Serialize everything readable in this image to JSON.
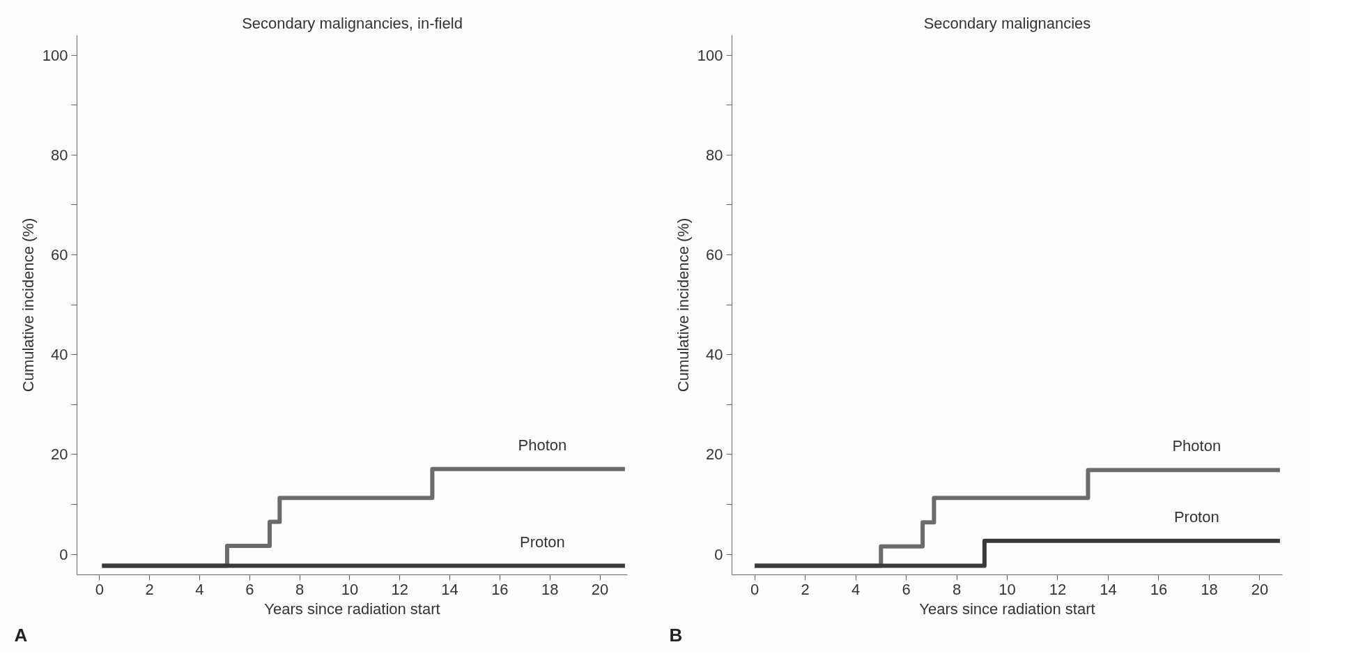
{
  "chart_data": [
    {
      "type": "step",
      "title": "Secondary malignancies, in-field",
      "xlabel": "Years since radiation start",
      "ylabel": "Cumulative incidence (%)",
      "annotations": [
        "A"
      ],
      "xlim": [
        -0.9,
        21.1
      ],
      "xticks": [
        0,
        2,
        4,
        6,
        8,
        10,
        12,
        14,
        16,
        18,
        20
      ],
      "ylim": [
        -4.1,
        104
      ],
      "yticks": [
        0,
        {
          "value": 10,
          "label": null
        },
        20,
        {
          "value": 30,
          "label": null
        },
        40,
        {
          "value": 50,
          "label": null
        },
        60,
        {
          "value": 70,
          "label": null
        },
        80,
        {
          "value": 90,
          "label": null
        },
        100
      ],
      "grid": false,
      "legend": false,
      "line_style": "solid",
      "marker": "none",
      "series": [
        {
          "name": "Photon",
          "color": "#6b6b6b",
          "x": [
            0.1,
            5.1,
            6.8,
            7.2,
            13.3,
            21.0
          ],
          "values": [
            -2.3,
            1.7,
            6.5,
            11.3,
            17.1,
            17.1
          ]
        },
        {
          "name": "Proton",
          "color": "#3a3a3a",
          "x": [
            0.1,
            21.0
          ],
          "values": [
            -2.3,
            -2.3
          ]
        }
      ]
    },
    {
      "type": "step",
      "title": "Secondary malignancies",
      "xlabel": "Years since radiation start",
      "ylabel": "Cumulative incidence (%)",
      "annotations": [
        "B"
      ],
      "xlim": [
        -0.9,
        20.9
      ],
      "xticks": [
        0,
        2,
        4,
        6,
        8,
        10,
        12,
        14,
        16,
        18,
        20
      ],
      "ylim": [
        -4.1,
        104
      ],
      "yticks": [
        0,
        {
          "value": 10,
          "label": null
        },
        20,
        {
          "value": 30,
          "label": null
        },
        40,
        {
          "value": 50,
          "label": null
        },
        60,
        {
          "value": 70,
          "label": null
        },
        80,
        {
          "value": 90,
          "label": null
        },
        100
      ],
      "grid": false,
      "legend": false,
      "line_style": "solid",
      "marker": "none",
      "series": [
        {
          "name": "Photon",
          "color": "#6b6b6b",
          "x": [
            0.0,
            5.0,
            6.65,
            7.1,
            13.2,
            20.8
          ],
          "values": [
            -2.3,
            1.6,
            6.4,
            11.3,
            16.9,
            16.9
          ]
        },
        {
          "name": "Proton",
          "color": "#3a3a3a",
          "x": [
            0.0,
            9.1,
            20.8
          ],
          "values": [
            -2.3,
            2.7,
            2.7
          ]
        }
      ]
    }
  ]
}
